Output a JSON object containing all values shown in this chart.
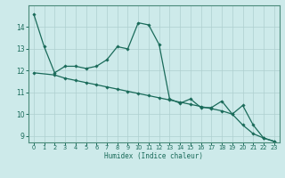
{
  "xlabel": "Humidex (Indice chaleur)",
  "background_color": "#cdeaea",
  "grid_color": "#aecfcf",
  "line_color": "#1a6b5a",
  "spine_color": "#4a8a7a",
  "xlim": [
    -0.5,
    23.5
  ],
  "ylim": [
    8.7,
    15.0
  ],
  "yticks": [
    9,
    10,
    11,
    12,
    13,
    14
  ],
  "xticks": [
    0,
    1,
    2,
    3,
    4,
    5,
    6,
    7,
    8,
    9,
    10,
    11,
    12,
    13,
    14,
    15,
    16,
    17,
    18,
    19,
    20,
    21,
    22,
    23
  ],
  "line1_x": [
    0,
    1,
    2,
    3,
    4,
    5,
    6,
    7,
    8,
    9,
    10,
    11,
    12,
    13,
    14,
    15,
    16,
    17,
    18,
    19,
    20,
    21,
    22,
    23
  ],
  "line1_y": [
    14.6,
    13.1,
    11.9,
    12.2,
    12.2,
    12.1,
    12.2,
    12.5,
    13.1,
    13.0,
    14.2,
    14.1,
    13.2,
    10.7,
    10.5,
    10.7,
    10.3,
    10.3,
    10.6,
    10.0,
    10.4,
    9.5,
    8.9,
    8.75
  ],
  "line2_x": [
    0,
    2,
    3,
    4,
    5,
    6,
    7,
    8,
    9,
    10,
    11,
    12,
    13,
    14,
    15,
    16,
    17,
    18,
    19,
    20,
    21,
    22,
    23
  ],
  "line2_y": [
    11.9,
    11.8,
    11.65,
    11.55,
    11.45,
    11.35,
    11.25,
    11.15,
    11.05,
    10.95,
    10.85,
    10.75,
    10.65,
    10.55,
    10.45,
    10.35,
    10.25,
    10.15,
    10.0,
    9.5,
    9.1,
    8.9,
    8.75
  ]
}
